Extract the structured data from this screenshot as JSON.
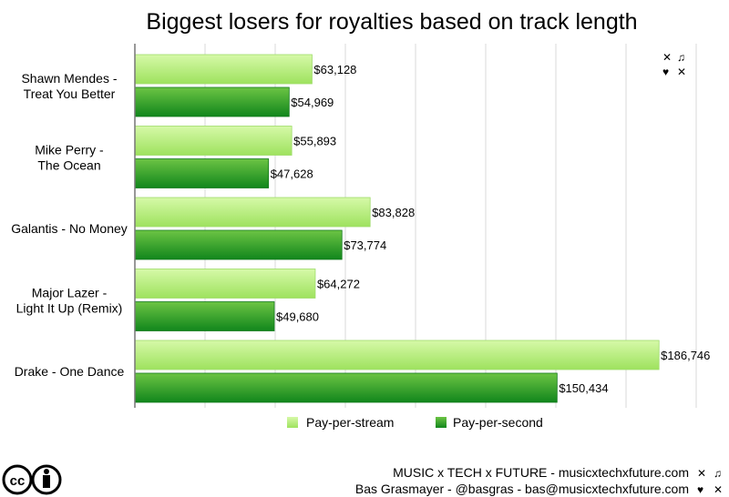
{
  "chart_data": {
    "type": "bar",
    "orientation": "horizontal",
    "title": "Biggest losers for royalties based on track length",
    "categories": [
      [
        "Shawn Mendes -",
        "Treat You Better"
      ],
      [
        "Mike Perry -",
        "The Ocean"
      ],
      [
        "Galantis - No Money"
      ],
      [
        "Major Lazer -",
        "Light It Up (Remix)"
      ],
      [
        "Drake - One Dance"
      ]
    ],
    "series": [
      {
        "name": "Pay-per-stream",
        "values": [
          63128,
          55893,
          83828,
          64272,
          186746
        ],
        "labels": [
          "$63,128",
          "$55,893",
          "$83,828",
          "$64,272",
          "$186,746"
        ],
        "color": "#b4ec84"
      },
      {
        "name": "Pay-per-second",
        "values": [
          54969,
          47628,
          73774,
          49680,
          150434
        ],
        "labels": [
          "$54,969",
          "$47,628",
          "$73,774",
          "$49,680",
          "$150,434"
        ],
        "color": "#2a9e2a"
      }
    ],
    "xlim": [
      0,
      200000
    ],
    "grid": true,
    "grid_step": 25000,
    "legend": "bottom"
  },
  "footer": {
    "line1": "MUSIC x TECH x FUTURE - musicxtechxfuture.com",
    "line2": "Bas Grasmayer - @basgras - bas@musicxtechxfuture.com",
    "license_icon": "creative-commons-by-icon"
  }
}
